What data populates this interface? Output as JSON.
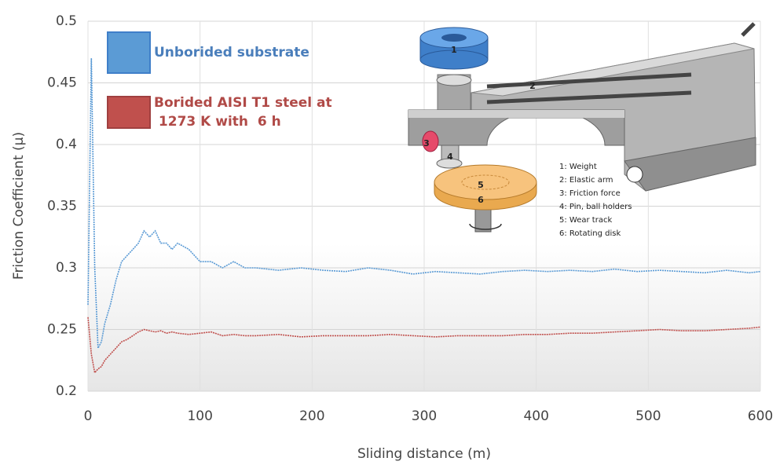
{
  "chart_data": {
    "type": "line",
    "x_label": "Sliding distance  (m)",
    "y_label": "Friction Coefficient (µ)",
    "x": [
      0,
      3,
      6,
      9,
      12,
      15,
      20,
      25,
      30,
      35,
      40,
      45,
      50,
      55,
      60,
      65,
      70,
      75,
      80,
      90,
      100,
      110,
      120,
      130,
      140,
      150,
      170,
      190,
      210,
      230,
      250,
      270,
      290,
      310,
      330,
      350,
      370,
      390,
      410,
      430,
      450,
      470,
      490,
      510,
      530,
      550,
      570,
      590,
      600
    ],
    "series": [
      {
        "name": "Unborided substrate",
        "color": "#5b9bd5",
        "values": [
          0.27,
          0.47,
          0.3,
          0.235,
          0.24,
          0.255,
          0.27,
          0.29,
          0.305,
          0.31,
          0.315,
          0.32,
          0.33,
          0.325,
          0.33,
          0.32,
          0.32,
          0.315,
          0.32,
          0.315,
          0.305,
          0.305,
          0.3,
          0.305,
          0.3,
          0.3,
          0.298,
          0.3,
          0.298,
          0.297,
          0.3,
          0.298,
          0.295,
          0.297,
          0.296,
          0.295,
          0.297,
          0.298,
          0.297,
          0.298,
          0.297,
          0.299,
          0.297,
          0.298,
          0.297,
          0.296,
          0.298,
          0.296,
          0.297
        ]
      },
      {
        "name": "Borided AISI T1 steel at\n 1273 K with  6 h",
        "color": "#c0504d",
        "values": [
          0.26,
          0.23,
          0.215,
          0.218,
          0.22,
          0.225,
          0.23,
          0.235,
          0.24,
          0.242,
          0.245,
          0.248,
          0.25,
          0.249,
          0.248,
          0.249,
          0.247,
          0.248,
          0.247,
          0.246,
          0.247,
          0.248,
          0.245,
          0.246,
          0.245,
          0.245,
          0.246,
          0.244,
          0.245,
          0.245,
          0.245,
          0.246,
          0.245,
          0.244,
          0.245,
          0.245,
          0.245,
          0.246,
          0.246,
          0.247,
          0.247,
          0.248,
          0.249,
          0.25,
          0.249,
          0.249,
          0.25,
          0.251,
          0.252
        ]
      }
    ],
    "xlim": [
      0,
      600
    ],
    "xticks": [
      0,
      100,
      200,
      300,
      400,
      500,
      600
    ],
    "ylim": [
      0.2,
      0.5
    ],
    "yticks": [
      0.2,
      0.25,
      0.3,
      0.35,
      0.4,
      0.45,
      0.5
    ],
    "grid": true,
    "inset": {
      "part_numbers": [
        "1",
        "2",
        "3",
        "4",
        "5",
        "6"
      ],
      "key": [
        "1: Weight",
        "2: Elastic arm",
        "3: Friction force",
        "4: Pin, ball holders",
        "5: Wear track",
        "6: Rotating disk"
      ]
    }
  }
}
